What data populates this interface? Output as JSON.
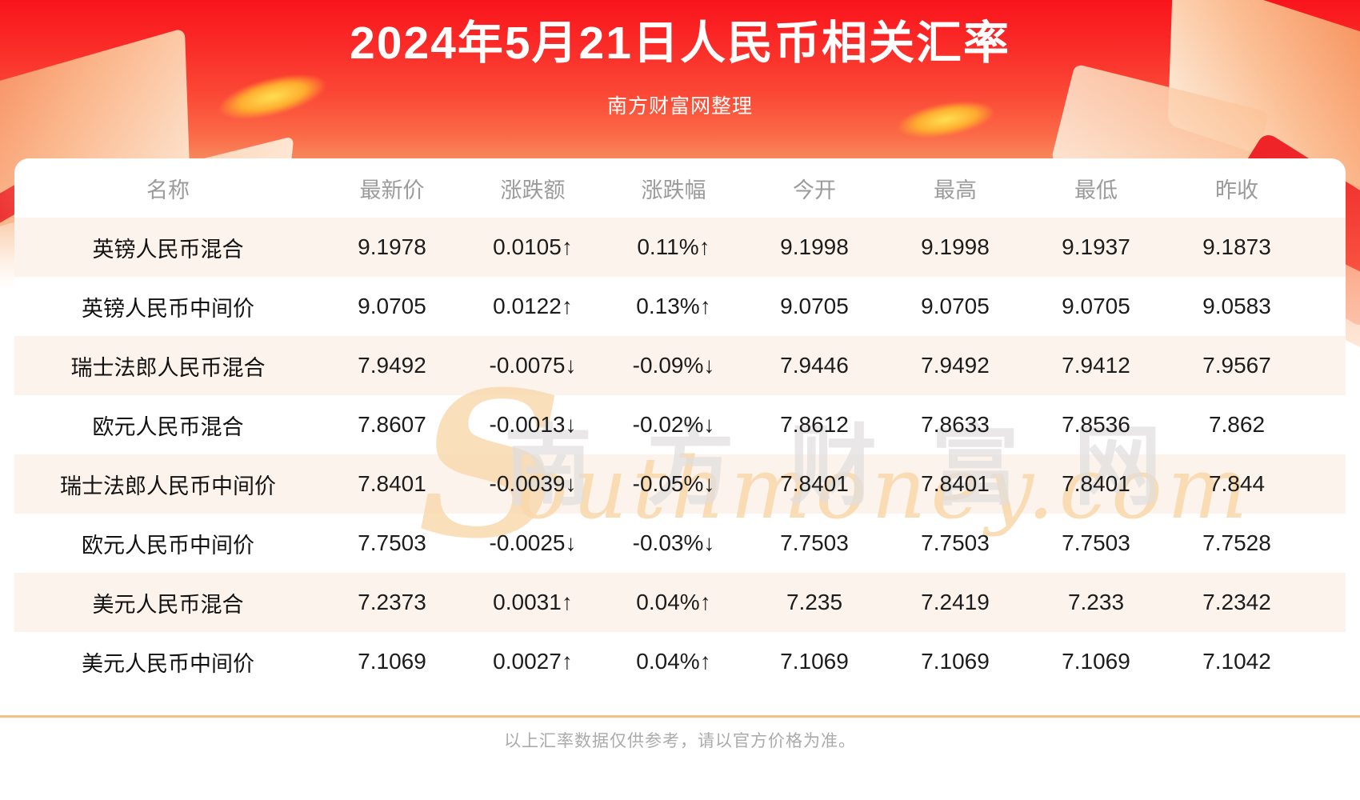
{
  "header": {
    "title": "2024年5月21日人民币相关汇率",
    "subtitle": "南方财富网整理"
  },
  "chart_data": {
    "type": "table",
    "title": "2024年5月21日人民币相关汇率",
    "subtitle": "南方财富网整理",
    "columns": [
      "名称",
      "最新价",
      "涨跌额",
      "涨跌幅",
      "今开",
      "最高",
      "最低",
      "昨收"
    ],
    "rows": [
      {
        "name": "英镑人民币混合",
        "latest": "9.1978",
        "change": "0.0105↑",
        "change_pct": "0.11%↑",
        "open": "9.1998",
        "high": "9.1998",
        "low": "9.1937",
        "prev_close": "9.1873",
        "direction": "up"
      },
      {
        "name": "英镑人民币中间价",
        "latest": "9.0705",
        "change": "0.0122↑",
        "change_pct": "0.13%↑",
        "open": "9.0705",
        "high": "9.0705",
        "low": "9.0705",
        "prev_close": "9.0583",
        "direction": "up"
      },
      {
        "name": "瑞士法郎人民币混合",
        "latest": "7.9492",
        "change": "-0.0075↓",
        "change_pct": "-0.09%↓",
        "open": "7.9446",
        "high": "7.9492",
        "low": "7.9412",
        "prev_close": "7.9567",
        "direction": "down"
      },
      {
        "name": "欧元人民币混合",
        "latest": "7.8607",
        "change": "-0.0013↓",
        "change_pct": "-0.02%↓",
        "open": "7.8612",
        "high": "7.8633",
        "low": "7.8536",
        "prev_close": "7.862",
        "direction": "down"
      },
      {
        "name": "瑞士法郎人民币中间价",
        "latest": "7.8401",
        "change": "-0.0039↓",
        "change_pct": "-0.05%↓",
        "open": "7.8401",
        "high": "7.8401",
        "low": "7.8401",
        "prev_close": "7.844",
        "direction": "down"
      },
      {
        "name": "欧元人民币中间价",
        "latest": "7.7503",
        "change": "-0.0025↓",
        "change_pct": "-0.03%↓",
        "open": "7.7503",
        "high": "7.7503",
        "low": "7.7503",
        "prev_close": "7.7528",
        "direction": "down"
      },
      {
        "name": "美元人民币混合",
        "latest": "7.2373",
        "change": "0.0031↑",
        "change_pct": "0.04%↑",
        "open": "7.235",
        "high": "7.2419",
        "low": "7.233",
        "prev_close": "7.2342",
        "direction": "up"
      },
      {
        "name": "美元人民币中间价",
        "latest": "7.1069",
        "change": "0.0027↑",
        "change_pct": "0.04%↑",
        "open": "7.1069",
        "high": "7.1069",
        "low": "7.1069",
        "prev_close": "7.1042",
        "direction": "up"
      }
    ]
  },
  "watermark": {
    "latin_initial": "S",
    "latin_rest": "outhmoney.com",
    "cjk": "南方财富网"
  },
  "footer": {
    "disclaimer": "以上汇率数据仅供参考，请以官方价格为准。"
  },
  "colors": {
    "header_red_top": "#f9141b",
    "header_red_mid": "#fb4936",
    "up_red": "#f50f0f",
    "down_green": "#068e06",
    "stripe_pink": "#fdf3ed",
    "column_header_gray": "#9b9b9b",
    "divider_orange": "#f5c183",
    "disclaimer_gray": "#ababab",
    "watermark_orange": "#f9d8ab",
    "watermark_gray": "#e0dede"
  }
}
